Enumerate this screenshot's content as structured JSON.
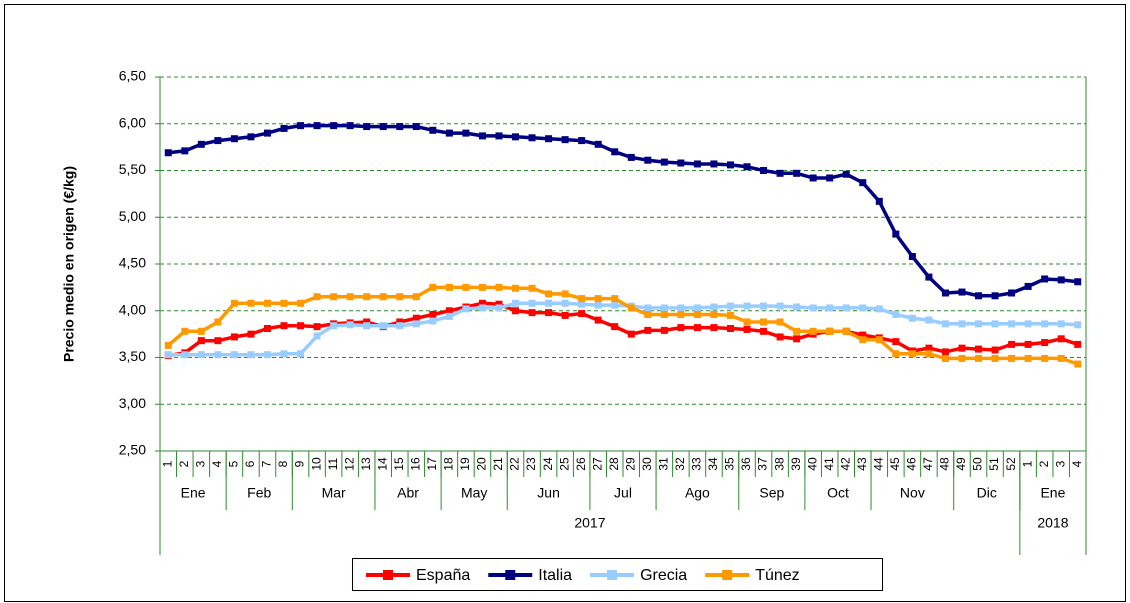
{
  "chart_data": {
    "type": "line",
    "y_label": "Precio medio en origen (€/kg)",
    "categories": [
      "1",
      "2",
      "3",
      "4",
      "5",
      "6",
      "7",
      "8",
      "9",
      "10",
      "11",
      "12",
      "13",
      "14",
      "15",
      "16",
      "17",
      "18",
      "19",
      "20",
      "21",
      "22",
      "23",
      "24",
      "25",
      "26",
      "27",
      "28",
      "29",
      "30",
      "31",
      "32",
      "33",
      "34",
      "35",
      "36",
      "37",
      "38",
      "39",
      "40",
      "41",
      "42",
      "43",
      "44",
      "45",
      "46",
      "47",
      "48",
      "49",
      "50",
      "51",
      "52",
      "1",
      "2",
      "3",
      "4"
    ],
    "month_groups": [
      {
        "label": "Ene",
        "count": 4
      },
      {
        "label": "Feb",
        "count": 4
      },
      {
        "label": "Mar",
        "count": 5
      },
      {
        "label": "Abr",
        "count": 4
      },
      {
        "label": "May",
        "count": 4
      },
      {
        "label": "Jun",
        "count": 5
      },
      {
        "label": "Jul",
        "count": 4
      },
      {
        "label": "Ago",
        "count": 5
      },
      {
        "label": "Sep",
        "count": 4
      },
      {
        "label": "Oct",
        "count": 4
      },
      {
        "label": "Nov",
        "count": 5
      },
      {
        "label": "Dic",
        "count": 4
      },
      {
        "label": "Ene",
        "count": 4
      }
    ],
    "year_groups": [
      {
        "label": "2017",
        "count": 52
      },
      {
        "label": "2018",
        "count": 4
      }
    ],
    "ylim": [
      2.5,
      6.5
    ],
    "yticks": [
      {
        "value": 2.5,
        "label": "2,50"
      },
      {
        "value": 3,
        "label": "3,00"
      },
      {
        "value": 3.5,
        "label": "3,50"
      },
      {
        "value": 4,
        "label": "4,00"
      },
      {
        "value": 4.5,
        "label": "4,50"
      },
      {
        "value": 5,
        "label": "5,00"
      },
      {
        "value": 5.5,
        "label": "5,50"
      },
      {
        "value": 6,
        "label": "6,00"
      },
      {
        "value": 6.5,
        "label": "6,50"
      }
    ],
    "grid": true,
    "legend": "bottom",
    "series": [
      {
        "name": "España",
        "color": "#ff0000",
        "values": [
          3.52,
          3.55,
          3.68,
          3.68,
          3.72,
          3.75,
          3.81,
          3.84,
          3.84,
          3.83,
          3.86,
          3.87,
          3.88,
          3.83,
          3.88,
          3.92,
          3.96,
          4.0,
          4.04,
          4.08,
          4.07,
          4.0,
          3.98,
          3.98,
          3.95,
          3.97,
          3.9,
          3.83,
          3.75,
          3.79,
          3.79,
          3.82,
          3.82,
          3.82,
          3.81,
          3.8,
          3.78,
          3.72,
          3.7,
          3.75,
          3.78,
          3.78,
          3.74,
          3.71,
          3.67,
          3.57,
          3.6,
          3.56,
          3.6,
          3.59,
          3.58,
          3.64,
          3.64,
          3.66,
          3.7,
          3.64
        ]
      },
      {
        "name": "Italia",
        "color": "#000080",
        "values": [
          5.69,
          5.71,
          5.78,
          5.82,
          5.84,
          5.86,
          5.9,
          5.95,
          5.98,
          5.98,
          5.98,
          5.98,
          5.97,
          5.97,
          5.97,
          5.97,
          5.93,
          5.9,
          5.9,
          5.87,
          5.87,
          5.86,
          5.85,
          5.84,
          5.83,
          5.82,
          5.78,
          5.7,
          5.64,
          5.61,
          5.59,
          5.58,
          5.57,
          5.57,
          5.56,
          5.54,
          5.5,
          5.47,
          5.47,
          5.42,
          5.42,
          5.46,
          5.37,
          5.17,
          4.82,
          4.58,
          4.36,
          4.19,
          4.2,
          4.16,
          4.16,
          4.19,
          4.26,
          4.34,
          4.33,
          4.31
        ]
      },
      {
        "name": "Grecia",
        "color": "#99ccff",
        "values": [
          3.53,
          3.53,
          3.53,
          3.53,
          3.53,
          3.53,
          3.53,
          3.54,
          3.54,
          3.73,
          3.84,
          3.85,
          3.84,
          3.84,
          3.84,
          3.86,
          3.89,
          3.94,
          4.02,
          4.03,
          4.03,
          4.08,
          4.08,
          4.08,
          4.08,
          4.07,
          4.06,
          4.06,
          4.05,
          4.03,
          4.03,
          4.03,
          4.03,
          4.04,
          4.05,
          4.05,
          4.05,
          4.05,
          4.04,
          4.03,
          4.03,
          4.03,
          4.03,
          4.02,
          3.96,
          3.92,
          3.9,
          3.86,
          3.86,
          3.86,
          3.86,
          3.86,
          3.86,
          3.86,
          3.86,
          3.85
        ]
      },
      {
        "name": "Túnez",
        "color": "#ff9900",
        "values": [
          3.63,
          3.78,
          3.78,
          3.88,
          4.08,
          4.08,
          4.08,
          4.08,
          4.08,
          4.15,
          4.15,
          4.15,
          4.15,
          4.15,
          4.15,
          4.15,
          4.25,
          4.25,
          4.25,
          4.25,
          4.25,
          4.24,
          4.24,
          4.18,
          4.18,
          4.13,
          4.13,
          4.13,
          4.03,
          3.96,
          3.96,
          3.96,
          3.96,
          3.96,
          3.95,
          3.88,
          3.88,
          3.88,
          3.78,
          3.78,
          3.78,
          3.78,
          3.69,
          3.69,
          3.54,
          3.54,
          3.54,
          3.49,
          3.49,
          3.49,
          3.49,
          3.49,
          3.49,
          3.49,
          3.49,
          3.43
        ]
      }
    ]
  }
}
